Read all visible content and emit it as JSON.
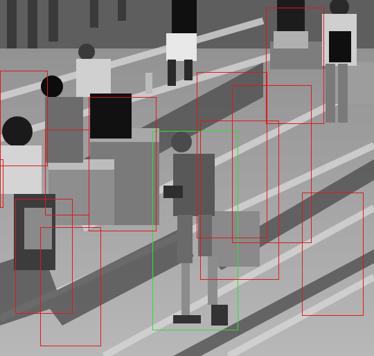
{
  "colors": {
    "box_default": "#e01818",
    "box_highlight": "#2fe02f"
  },
  "boxes": [
    {
      "label": "person",
      "status": "highlighted"
    },
    {
      "label": "person",
      "status": "default"
    },
    {
      "label": "person",
      "status": "default"
    },
    {
      "label": "person",
      "status": "default"
    },
    {
      "label": "person",
      "status": "default"
    },
    {
      "label": "person",
      "status": "default"
    },
    {
      "label": "person",
      "status": "default"
    },
    {
      "label": "person",
      "status": "default"
    },
    {
      "label": "person",
      "status": "default"
    },
    {
      "label": "person",
      "status": "default"
    },
    {
      "label": "person",
      "status": "default"
    },
    {
      "label": "person",
      "status": "default"
    }
  ]
}
